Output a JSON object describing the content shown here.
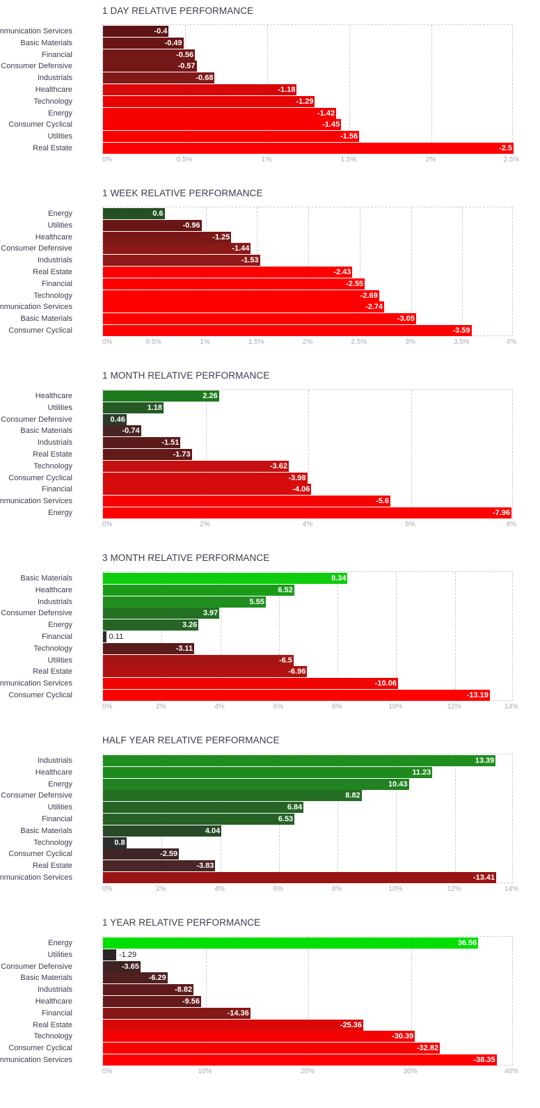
{
  "chart_data": [
    {
      "type": "bar",
      "title": "1 DAY RELATIVE PERFORMANCE",
      "categories": [
        "Communication Services",
        "Basic Materials",
        "Financial",
        "Consumer Defensive",
        "Industrials",
        "Healthcare",
        "Technology",
        "Energy",
        "Consumer Cyclical",
        "Utilities",
        "Real Estate"
      ],
      "values": [
        -0.4,
        -0.49,
        -0.56,
        -0.57,
        -0.68,
        -1.18,
        -1.29,
        -1.42,
        -1.45,
        -1.56,
        -2.5
      ],
      "value_labels": [
        "-0.4",
        "-0.49",
        "-0.56",
        "-0.57",
        "-0.68",
        "-1.18",
        "-1.29",
        "-1.42",
        "-1.45",
        "-1.56",
        "-2.5"
      ],
      "colors": [
        "#5e1414",
        "#6a1616",
        "#731717",
        "#751717",
        "#821919",
        "#d80808",
        "#e80404",
        "#f50202",
        "#f80101",
        "#ff0000",
        "#ff0000"
      ],
      "xlim": [
        0,
        2.5
      ],
      "ticks": [
        "0%",
        "0.5%",
        "1%",
        "1.5%",
        "2%",
        "2.5%"
      ],
      "tick_values": [
        0,
        0.5,
        1,
        1.5,
        2,
        2.5
      ],
      "xlabel": "",
      "ylabel": "",
      "grid": true,
      "orientation": "horizontal"
    },
    {
      "type": "bar",
      "title": "1 WEEK RELATIVE PERFORMANCE",
      "categories": [
        "Energy",
        "Utilities",
        "Healthcare",
        "Consumer Defensive",
        "Industrials",
        "Real Estate",
        "Financial",
        "Technology",
        "Communication Services",
        "Basic Materials",
        "Consumer Cyclical"
      ],
      "values": [
        0.6,
        -0.96,
        -1.25,
        -1.44,
        -1.53,
        -2.43,
        -2.55,
        -2.69,
        -2.74,
        -3.05,
        -3.59
      ],
      "value_labels": [
        "0.6",
        "-0.96",
        "-1.25",
        "-1.44",
        "-1.53",
        "-2.43",
        "-2.55",
        "-2.69",
        "-2.74",
        "-3.05",
        "-3.59"
      ],
      "colors": [
        "#245024",
        "#681616",
        "#7a1717",
        "#891818",
        "#901818",
        "#ff0000",
        "#ff0000",
        "#ff0000",
        "#ff0000",
        "#ff0000",
        "#ff0000"
      ],
      "xlim": [
        0,
        4
      ],
      "ticks": [
        "0%",
        "0.5%",
        "1%",
        "1.5%",
        "2%",
        "2.5%",
        "3%",
        "3.5%",
        "4%"
      ],
      "tick_values": [
        0,
        0.5,
        1,
        1.5,
        2,
        2.5,
        3,
        3.5,
        4
      ],
      "xlabel": "",
      "ylabel": "",
      "grid": true,
      "orientation": "horizontal"
    },
    {
      "type": "bar",
      "title": "1 MONTH RELATIVE PERFORMANCE",
      "categories": [
        "Healthcare",
        "Utilities",
        "Consumer Defensive",
        "Basic Materials",
        "Industrials",
        "Real Estate",
        "Technology",
        "Consumer Cyclical",
        "Financial",
        "Communication Services",
        "Energy"
      ],
      "values": [
        2.26,
        1.18,
        0.46,
        -0.74,
        -1.51,
        -1.73,
        -3.62,
        -3.98,
        -4.06,
        -5.6,
        -7.96
      ],
      "value_labels": [
        "2.26",
        "1.18",
        "0.46",
        "-0.74",
        "-1.51",
        "-1.73",
        "-3.62",
        "-3.98",
        "-4.06",
        "-5.6",
        "-7.96"
      ],
      "colors": [
        "#1f7a1f",
        "#255a25",
        "#2b3b2b",
        "#4a2424",
        "#5c1b1b",
        "#621a1a",
        "#c51010",
        "#d50c0c",
        "#d80b0b",
        "#f70202",
        "#ff0000"
      ],
      "xlim": [
        0,
        8
      ],
      "ticks": [
        "0%",
        "2%",
        "4%",
        "6%",
        "8%"
      ],
      "tick_values": [
        0,
        2,
        4,
        6,
        8
      ],
      "xlabel": "",
      "ylabel": "",
      "grid": true,
      "orientation": "horizontal"
    },
    {
      "type": "bar",
      "title": "3 MONTH RELATIVE PERFORMANCE",
      "categories": [
        "Basic Materials",
        "Healthcare",
        "Industrials",
        "Consumer Defensive",
        "Energy",
        "Financial",
        "Technology",
        "Utilities",
        "Real Estate",
        "Communication Services",
        "Consumer Cyclical"
      ],
      "values": [
        8.34,
        6.52,
        5.55,
        3.97,
        3.26,
        0.11,
        -3.11,
        -6.5,
        -6.96,
        -10.06,
        -13.19
      ],
      "value_labels": [
        "8.34",
        "6.52",
        "5.55",
        "3.97",
        "3.26",
        "0.11",
        "-3.11",
        "-6.5",
        "-6.96",
        "-10.06",
        "-13.19"
      ],
      "colors": [
        "#0fcc0f",
        "#1a9c1a",
        "#1f8e1f",
        "#227022",
        "#256425",
        "#2b2b2b",
        "#5a1c1c",
        "#a61414",
        "#b21212",
        "#f00404",
        "#ff0000"
      ],
      "xlim": [
        0,
        14
      ],
      "ticks": [
        "0%",
        "2%",
        "4%",
        "6%",
        "8%",
        "10%",
        "12%",
        "14%"
      ],
      "tick_values": [
        0,
        2,
        4,
        6,
        8,
        10,
        12,
        14
      ],
      "xlabel": "",
      "ylabel": "",
      "grid": true,
      "orientation": "horizontal"
    },
    {
      "type": "bar",
      "title": "HALF YEAR RELATIVE PERFORMANCE",
      "categories": [
        "Industrials",
        "Healthcare",
        "Energy",
        "Consumer Defensive",
        "Utilities",
        "Financial",
        "Basic Materials",
        "Technology",
        "Consumer Cyclical",
        "Real Estate",
        "Communication Services"
      ],
      "values": [
        13.39,
        11.23,
        10.43,
        8.82,
        6.84,
        6.53,
        4.04,
        0.8,
        -2.59,
        -3.83,
        -13.41
      ],
      "value_labels": [
        "13.39",
        "11.23",
        "10.43",
        "8.82",
        "6.84",
        "6.53",
        "4.04",
        "0.8",
        "-2.59",
        "-3.83",
        "-13.41"
      ],
      "colors": [
        "#1f8e1f",
        "#1e8a1e",
        "#208220",
        "#236d23",
        "#256425",
        "#256125",
        "#284a28",
        "#2b2f2b",
        "#3f2525",
        "#4a2626",
        "#9a1414"
      ],
      "xlim": [
        0,
        14
      ],
      "ticks": [
        "0%",
        "2%",
        "4%",
        "6%",
        "8%",
        "10%",
        "12%",
        "14%"
      ],
      "tick_values": [
        0,
        2,
        4,
        6,
        8,
        10,
        12,
        14
      ],
      "xlabel": "",
      "ylabel": "",
      "grid": true,
      "orientation": "horizontal"
    },
    {
      "type": "bar",
      "title": "1 YEAR RELATIVE PERFORMANCE",
      "categories": [
        "Energy",
        "Utilities",
        "Consumer Defensive",
        "Basic Materials",
        "Industrials",
        "Healthcare",
        "Financial",
        "Real Estate",
        "Technology",
        "Consumer Cyclical",
        "Communication Services"
      ],
      "values": [
        36.56,
        -1.29,
        -3.65,
        -6.29,
        -8.82,
        -9.56,
        -14.36,
        -25.36,
        -30.39,
        -32.82,
        -38.35
      ],
      "value_labels": [
        "36.56",
        "-1.29",
        "-3.65",
        "-6.29",
        "-8.82",
        "-9.56",
        "-14.36",
        "-25.36",
        "-30.39",
        "-32.82",
        "-38.35"
      ],
      "colors": [
        "#00e000",
        "#2e2626",
        "#3f2222",
        "#4f1f1f",
        "#5f1b1b",
        "#641a1a",
        "#861717",
        "#d90909",
        "#f40303",
        "#f80202",
        "#ff0000"
      ],
      "xlim": [
        0,
        40
      ],
      "ticks": [
        "0%",
        "10%",
        "20%",
        "30%",
        "40%"
      ],
      "tick_values": [
        0,
        10,
        20,
        30,
        40
      ],
      "xlabel": "",
      "ylabel": "",
      "grid": true,
      "orientation": "horizontal"
    }
  ]
}
